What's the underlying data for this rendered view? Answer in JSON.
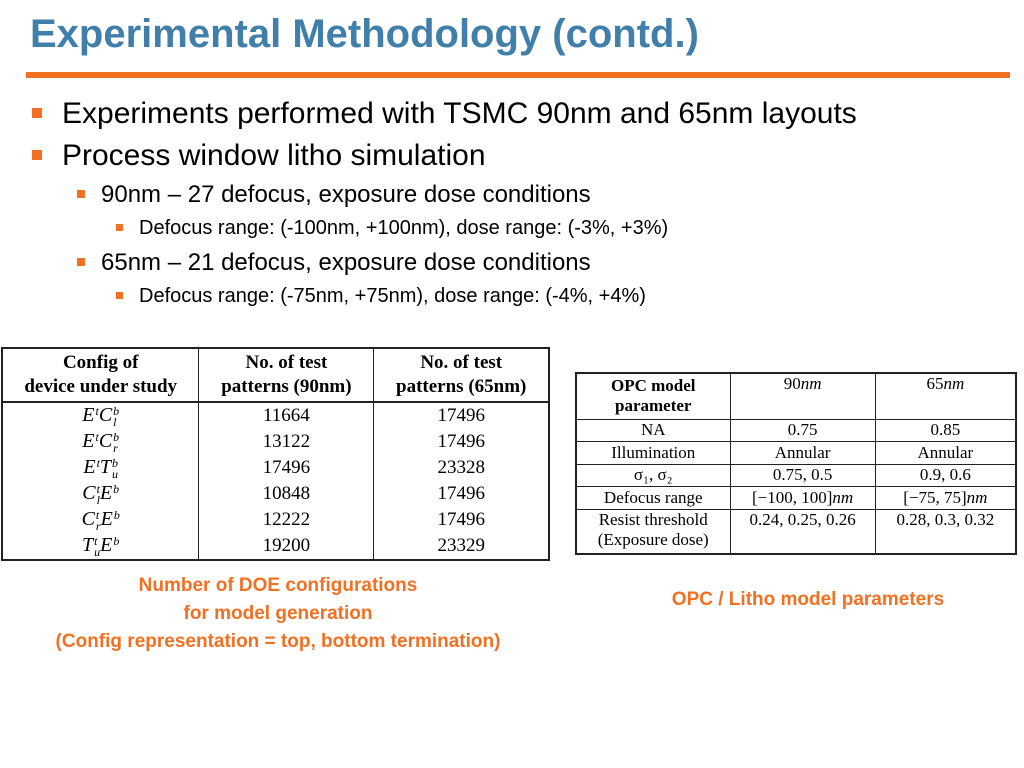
{
  "slide": {
    "title": "Experimental Methodology (contd.)",
    "bullets": {
      "b1": "Experiments performed with TSMC 90nm and 65nm layouts",
      "b2": "Process window litho simulation",
      "b2a": "90nm – 27 defocus, exposure dose conditions",
      "b2a1": "Defocus range: (-100nm, +100nm), dose range: (-3%, +3%)",
      "b2b": "65nm – 21 defocus, exposure dose conditions",
      "b2b1": "Defocus range: (-75nm, +75nm), dose range: (-4%, +4%)"
    }
  },
  "doe_table": {
    "headers": [
      [
        "Config of",
        "device under study"
      ],
      [
        "No. of test",
        "patterns (90nm)"
      ],
      [
        "No. of test",
        "patterns (65nm)"
      ]
    ],
    "rows": [
      {
        "config": {
          "a": "E",
          "a_sup": "t",
          "b": "C",
          "b_sup": "b",
          "b_sub": "l"
        },
        "n90": "11664",
        "n65": "17496"
      },
      {
        "config": {
          "a": "E",
          "a_sup": "t",
          "b": "C",
          "b_sup": "b",
          "b_sub": "r"
        },
        "n90": "13122",
        "n65": "17496"
      },
      {
        "config": {
          "a": "E",
          "a_sup": "t",
          "b": "T",
          "b_sup": "b",
          "b_sub": "u"
        },
        "n90": "17496",
        "n65": "23328"
      },
      {
        "config": {
          "a": "C",
          "a_sup": "t",
          "a_sub": "l",
          "b": "E",
          "b_sup": "b"
        },
        "n90": "10848",
        "n65": "17496"
      },
      {
        "config": {
          "a": "C",
          "a_sup": "t",
          "a_sub": "r",
          "b": "E",
          "b_sup": "b"
        },
        "n90": "12222",
        "n65": "17496"
      },
      {
        "config": {
          "a": "T",
          "a_sup": "t",
          "a_sub": "u",
          "b": "E",
          "b_sup": "b"
        },
        "n90": "19200",
        "n65": "23329"
      }
    ],
    "caption": [
      "Number of DOE configurations",
      "for model generation",
      "(Config representation = top, bottom termination)"
    ]
  },
  "opc_table": {
    "header": {
      "param": [
        "OPC model",
        "parameter"
      ],
      "c90_num": "90",
      "c65_num": "65",
      "unit": "nm"
    },
    "rows": [
      {
        "param": "NA",
        "v90": "0.75",
        "v65": "0.85"
      },
      {
        "param": "Illumination",
        "v90": "Annular",
        "v65": "Annular"
      },
      {
        "param": "σ₁, σ₂",
        "v90": "0.75, 0.5",
        "v65": "0.9, 0.6"
      },
      {
        "param": "Defocus range",
        "v90": "[−100, 100]",
        "v65": "[−75, 75]"
      },
      {
        "param": [
          "Resist threshold",
          "(Exposure dose)"
        ],
        "v90": "0.24, 0.25, 0.26",
        "v65": "0.28, 0.3, 0.32"
      }
    ],
    "caption": "OPC / Litho model parameters"
  },
  "colors": {
    "title": "#3f7fa9",
    "accent": "#f36f21"
  }
}
